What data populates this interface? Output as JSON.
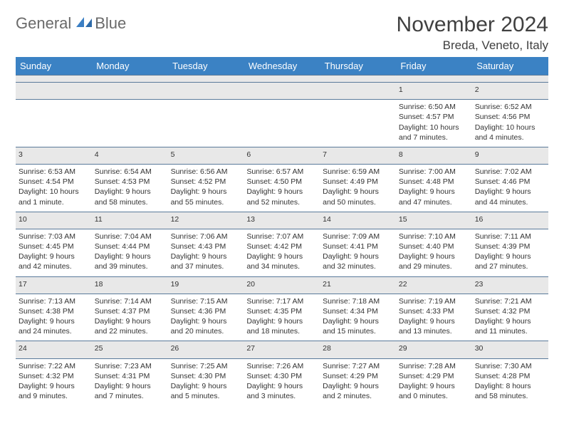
{
  "logo": {
    "text1": "General",
    "text2": "Blue"
  },
  "title": "November 2024",
  "location": "Breda, Veneto, Italy",
  "colors": {
    "header_bg": "#3b82c4",
    "header_text": "#ffffff",
    "daynum_bg": "#e8e8e8",
    "cell_border": "#6a88a5",
    "text": "#333333",
    "logo_gray": "#6a6a6a",
    "logo_blue": "#3b7fc4"
  },
  "weekdays": [
    "Sunday",
    "Monday",
    "Tuesday",
    "Wednesday",
    "Thursday",
    "Friday",
    "Saturday"
  ],
  "weeks": [
    {
      "nums": [
        "",
        "",
        "",
        "",
        "",
        "1",
        "2"
      ],
      "cells": [
        "",
        "",
        "",
        "",
        "",
        "Sunrise: 6:50 AM\nSunset: 4:57 PM\nDaylight: 10 hours and 7 minutes.",
        "Sunrise: 6:52 AM\nSunset: 4:56 PM\nDaylight: 10 hours and 4 minutes."
      ]
    },
    {
      "nums": [
        "3",
        "4",
        "5",
        "6",
        "7",
        "8",
        "9"
      ],
      "cells": [
        "Sunrise: 6:53 AM\nSunset: 4:54 PM\nDaylight: 10 hours and 1 minute.",
        "Sunrise: 6:54 AM\nSunset: 4:53 PM\nDaylight: 9 hours and 58 minutes.",
        "Sunrise: 6:56 AM\nSunset: 4:52 PM\nDaylight: 9 hours and 55 minutes.",
        "Sunrise: 6:57 AM\nSunset: 4:50 PM\nDaylight: 9 hours and 52 minutes.",
        "Sunrise: 6:59 AM\nSunset: 4:49 PM\nDaylight: 9 hours and 50 minutes.",
        "Sunrise: 7:00 AM\nSunset: 4:48 PM\nDaylight: 9 hours and 47 minutes.",
        "Sunrise: 7:02 AM\nSunset: 4:46 PM\nDaylight: 9 hours and 44 minutes."
      ]
    },
    {
      "nums": [
        "10",
        "11",
        "12",
        "13",
        "14",
        "15",
        "16"
      ],
      "cells": [
        "Sunrise: 7:03 AM\nSunset: 4:45 PM\nDaylight: 9 hours and 42 minutes.",
        "Sunrise: 7:04 AM\nSunset: 4:44 PM\nDaylight: 9 hours and 39 minutes.",
        "Sunrise: 7:06 AM\nSunset: 4:43 PM\nDaylight: 9 hours and 37 minutes.",
        "Sunrise: 7:07 AM\nSunset: 4:42 PM\nDaylight: 9 hours and 34 minutes.",
        "Sunrise: 7:09 AM\nSunset: 4:41 PM\nDaylight: 9 hours and 32 minutes.",
        "Sunrise: 7:10 AM\nSunset: 4:40 PM\nDaylight: 9 hours and 29 minutes.",
        "Sunrise: 7:11 AM\nSunset: 4:39 PM\nDaylight: 9 hours and 27 minutes."
      ]
    },
    {
      "nums": [
        "17",
        "18",
        "19",
        "20",
        "21",
        "22",
        "23"
      ],
      "cells": [
        "Sunrise: 7:13 AM\nSunset: 4:38 PM\nDaylight: 9 hours and 24 minutes.",
        "Sunrise: 7:14 AM\nSunset: 4:37 PM\nDaylight: 9 hours and 22 minutes.",
        "Sunrise: 7:15 AM\nSunset: 4:36 PM\nDaylight: 9 hours and 20 minutes.",
        "Sunrise: 7:17 AM\nSunset: 4:35 PM\nDaylight: 9 hours and 18 minutes.",
        "Sunrise: 7:18 AM\nSunset: 4:34 PM\nDaylight: 9 hours and 15 minutes.",
        "Sunrise: 7:19 AM\nSunset: 4:33 PM\nDaylight: 9 hours and 13 minutes.",
        "Sunrise: 7:21 AM\nSunset: 4:32 PM\nDaylight: 9 hours and 11 minutes."
      ]
    },
    {
      "nums": [
        "24",
        "25",
        "26",
        "27",
        "28",
        "29",
        "30"
      ],
      "cells": [
        "Sunrise: 7:22 AM\nSunset: 4:32 PM\nDaylight: 9 hours and 9 minutes.",
        "Sunrise: 7:23 AM\nSunset: 4:31 PM\nDaylight: 9 hours and 7 minutes.",
        "Sunrise: 7:25 AM\nSunset: 4:30 PM\nDaylight: 9 hours and 5 minutes.",
        "Sunrise: 7:26 AM\nSunset: 4:30 PM\nDaylight: 9 hours and 3 minutes.",
        "Sunrise: 7:27 AM\nSunset: 4:29 PM\nDaylight: 9 hours and 2 minutes.",
        "Sunrise: 7:28 AM\nSunset: 4:29 PM\nDaylight: 9 hours and 0 minutes.",
        "Sunrise: 7:30 AM\nSunset: 4:28 PM\nDaylight: 8 hours and 58 minutes."
      ]
    }
  ]
}
